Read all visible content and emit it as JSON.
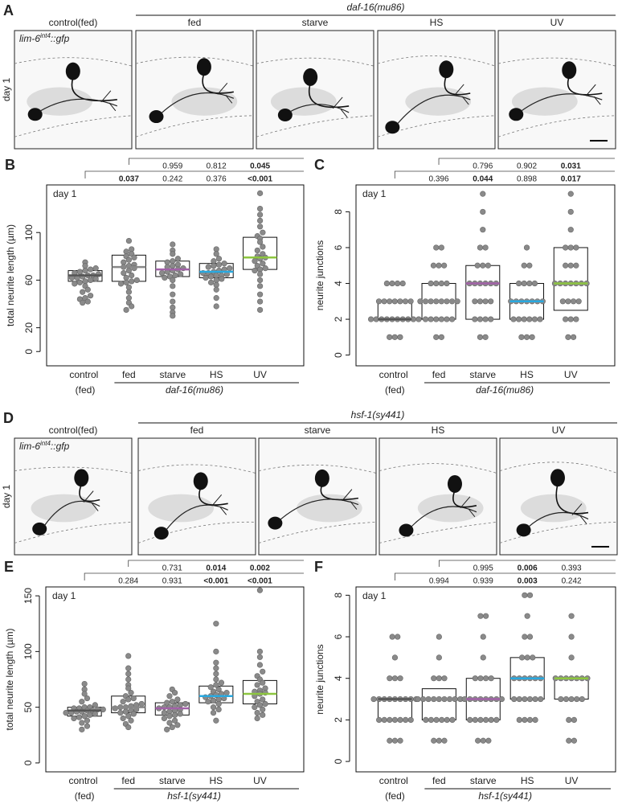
{
  "panel_A": {
    "letter": "A",
    "genotype": "daf-16(mu86)",
    "columns": [
      "control(fed)",
      "fed",
      "starve",
      "HS",
      "UV"
    ],
    "row_label": "day 1",
    "reporter": {
      "base": "lim-6",
      "sup": "int4",
      "suffix": "::gfp"
    }
  },
  "panel_D": {
    "letter": "D",
    "genotype": "hsf-1(sy441)",
    "columns": [
      "control(fed)",
      "fed",
      "starve",
      "HS",
      "UV"
    ],
    "row_label": "day 1",
    "reporter": {
      "base": "lim-6",
      "sup": "int4",
      "suffix": "::gfp"
    }
  },
  "chart_data": [
    {
      "type": "box-swarm",
      "panel": "B",
      "ylabel": "total neurite length (µm)",
      "inset_label": "day 1",
      "group_label": "daf-16(mu86)",
      "categories": [
        "control (fed)",
        "fed",
        "starve",
        "HS",
        "UV"
      ],
      "ylim": [
        -12,
        140
      ],
      "yticks": [
        0,
        20,
        60,
        100
      ],
      "point_color": "#8a8a8a",
      "p_vs_control": {
        "values": [
          "0.037",
          "0.242",
          "0.376",
          "<0.001"
        ],
        "bold": [
          true,
          false,
          false,
          true
        ]
      },
      "p_vs_fed": {
        "values": [
          "0.959",
          "0.812",
          "0.045"
        ],
        "bold": [
          false,
          false,
          true
        ]
      },
      "boxes": [
        {
          "q1": 59,
          "median": 64,
          "q3": 68,
          "color": "#555555"
        },
        {
          "q1": 59,
          "median": 71,
          "q3": 81,
          "color": "#888888"
        },
        {
          "q1": 63,
          "median": 69,
          "q3": 76,
          "color": "#a262a8"
        },
        {
          "q1": 62,
          "median": 67,
          "q3": 74,
          "color": "#29a9e0"
        },
        {
          "q1": 69,
          "median": 79,
          "q3": 96,
          "color": "#8dc63f"
        }
      ],
      "points": [
        [
          41,
          42,
          44,
          45,
          47,
          50,
          52,
          55,
          57,
          58,
          59,
          60,
          61,
          62,
          62,
          63,
          64,
          64,
          65,
          66,
          67,
          68,
          69,
          70,
          72,
          75
        ],
        [
          35,
          38,
          41,
          45,
          50,
          54,
          57,
          58,
          59,
          60,
          62,
          64,
          66,
          68,
          70,
          71,
          72,
          73,
          75,
          77,
          79,
          80,
          82,
          84,
          86,
          93
        ],
        [
          30,
          33,
          37,
          42,
          48,
          55,
          60,
          62,
          63,
          64,
          65,
          66,
          67,
          68,
          69,
          70,
          71,
          72,
          73,
          75,
          76,
          78,
          82,
          85,
          90
        ],
        [
          38,
          45,
          52,
          56,
          58,
          60,
          61,
          62,
          63,
          64,
          64,
          65,
          66,
          66,
          67,
          68,
          69,
          70,
          71,
          72,
          73,
          74,
          76,
          78,
          82,
          86
        ],
        [
          35,
          42,
          48,
          55,
          60,
          65,
          68,
          69,
          70,
          72,
          74,
          76,
          78,
          79,
          80,
          82,
          85,
          88,
          92,
          95,
          97,
          100,
          105,
          110,
          115,
          120,
          133
        ]
      ]
    },
    {
      "type": "box-swarm",
      "panel": "C",
      "ylabel": "neurite junctions",
      "inset_label": "day 1",
      "group_label": "daf-16(mu86)",
      "categories": [
        "control (fed)",
        "fed",
        "starve",
        "HS",
        "UV"
      ],
      "ylim": [
        -0.6,
        9.5
      ],
      "yticks": [
        0,
        2,
        4,
        6,
        8
      ],
      "point_color": "#8a8a8a",
      "p_vs_control": {
        "values": [
          "0.396",
          "0.044",
          "0.898",
          "0.017"
        ],
        "bold": [
          false,
          true,
          false,
          true
        ]
      },
      "p_vs_fed": {
        "values": [
          "0.796",
          "0.902",
          "0.031"
        ],
        "bold": [
          false,
          false,
          true
        ]
      },
      "boxes": [
        {
          "q1": 2,
          "median": 2,
          "q3": 3,
          "color": "#555555"
        },
        {
          "q1": 2,
          "median": 3,
          "q3": 4,
          "color": "#888888"
        },
        {
          "q1": 2,
          "median": 4,
          "q3": 5,
          "color": "#a262a8"
        },
        {
          "q1": 2,
          "median": 3,
          "q3": 4,
          "color": "#29a9e0"
        },
        {
          "q1": 2.5,
          "median": 4,
          "q3": 6,
          "color": "#8dc63f"
        }
      ],
      "points": [
        [
          1,
          1,
          1,
          2,
          2,
          2,
          2,
          2,
          2,
          2,
          2,
          2,
          2,
          3,
          3,
          3,
          3,
          3,
          3,
          3,
          4,
          4,
          4,
          4
        ],
        [
          1,
          1,
          2,
          2,
          2,
          2,
          2,
          2,
          3,
          3,
          3,
          3,
          3,
          3,
          3,
          3,
          4,
          4,
          4,
          4,
          5,
          5,
          5,
          6,
          6
        ],
        [
          1,
          1,
          2,
          2,
          2,
          2,
          3,
          3,
          3,
          3,
          4,
          4,
          4,
          4,
          4,
          4,
          5,
          5,
          5,
          6,
          6,
          7,
          8,
          9
        ],
        [
          1,
          1,
          1,
          2,
          2,
          2,
          2,
          2,
          2,
          3,
          3,
          3,
          3,
          3,
          3,
          3,
          4,
          4,
          4,
          4,
          5,
          5,
          6
        ],
        [
          1,
          1,
          2,
          2,
          2,
          3,
          3,
          3,
          3,
          4,
          4,
          4,
          4,
          4,
          4,
          4,
          5,
          5,
          5,
          6,
          6,
          6,
          7,
          8,
          9
        ]
      ]
    },
    {
      "type": "box-swarm",
      "panel": "E",
      "ylabel": "total neurite length (µm)",
      "inset_label": "day 1",
      "group_label": "hsf-1(sy441)",
      "categories": [
        "control (fed)",
        "fed",
        "starve",
        "HS",
        "UV"
      ],
      "ylim": [
        -8,
        158
      ],
      "yticks": [
        0,
        50,
        100,
        150
      ],
      "point_color": "#8a8a8a",
      "p_vs_control": {
        "values": [
          "0.284",
          "0.931",
          "<0.001",
          "<0.001"
        ],
        "bold": [
          false,
          false,
          true,
          true
        ]
      },
      "p_vs_fed": {
        "values": [
          "0.731",
          "0.014",
          "0.002"
        ],
        "bold": [
          false,
          true,
          true
        ]
      },
      "boxes": [
        {
          "q1": 42,
          "median": 47,
          "q3": 50,
          "color": "#555555"
        },
        {
          "q1": 45,
          "median": 50,
          "q3": 60,
          "color": "#888888"
        },
        {
          "q1": 43,
          "median": 49,
          "q3": 54,
          "color": "#a262a8"
        },
        {
          "q1": 54,
          "median": 60,
          "q3": 69,
          "color": "#29a9e0"
        },
        {
          "q1": 53,
          "median": 62,
          "q3": 74,
          "color": "#8dc63f"
        }
      ],
      "points": [
        [
          30,
          33,
          36,
          38,
          40,
          41,
          42,
          43,
          44,
          45,
          45,
          46,
          46,
          47,
          47,
          48,
          48,
          49,
          49,
          50,
          50,
          52,
          55,
          58,
          62,
          66,
          71
        ],
        [
          32,
          35,
          38,
          40,
          42,
          44,
          45,
          46,
          47,
          48,
          49,
          50,
          50,
          51,
          52,
          53,
          55,
          57,
          58,
          60,
          63,
          67,
          70,
          75,
          80,
          85,
          96
        ],
        [
          30,
          32,
          34,
          36,
          38,
          40,
          42,
          43,
          44,
          45,
          46,
          47,
          48,
          49,
          50,
          50,
          51,
          52,
          53,
          54,
          55,
          57,
          60,
          63,
          66
        ],
        [
          38,
          45,
          48,
          50,
          53,
          55,
          56,
          57,
          58,
          59,
          60,
          61,
          62,
          63,
          64,
          66,
          68,
          70,
          72,
          75,
          80,
          85,
          90,
          100,
          125
        ],
        [
          40,
          43,
          45,
          48,
          50,
          52,
          53,
          55,
          57,
          60,
          62,
          63,
          64,
          65,
          67,
          70,
          72,
          75,
          78,
          82,
          88,
          95,
          100,
          155
        ]
      ]
    },
    {
      "type": "box-swarm",
      "panel": "F",
      "ylabel": "neurite junctions",
      "inset_label": "day 1",
      "group_label": "hsf-1(sy441)",
      "categories": [
        "control (fed)",
        "fed",
        "starve",
        "HS",
        "UV"
      ],
      "ylim": [
        -0.5,
        8.4
      ],
      "yticks": [
        0,
        2,
        4,
        6,
        8
      ],
      "point_color": "#8a8a8a",
      "p_vs_control": {
        "values": [
          "0.994",
          "0.939",
          "0.003",
          "0.242"
        ],
        "bold": [
          false,
          false,
          true,
          false
        ]
      },
      "p_vs_fed": {
        "values": [
          "0.995",
          "0.006",
          "0.393"
        ],
        "bold": [
          false,
          true,
          false
        ]
      },
      "boxes": [
        {
          "q1": 2,
          "median": 3,
          "q3": 3,
          "color": "#555555"
        },
        {
          "q1": 2,
          "median": 3,
          "q3": 3.5,
          "color": "#888888"
        },
        {
          "q1": 2,
          "median": 3,
          "q3": 4,
          "color": "#a262a8"
        },
        {
          "q1": 3,
          "median": 4,
          "q3": 5,
          "color": "#29a9e0"
        },
        {
          "q1": 3,
          "median": 4,
          "q3": 4,
          "color": "#8dc63f"
        }
      ],
      "points": [
        [
          1,
          1,
          1,
          2,
          2,
          2,
          2,
          2,
          2,
          2,
          3,
          3,
          3,
          3,
          3,
          3,
          3,
          3,
          3,
          4,
          4,
          4,
          5,
          6,
          6
        ],
        [
          1,
          1,
          1,
          2,
          2,
          2,
          2,
          2,
          2,
          3,
          3,
          3,
          3,
          3,
          3,
          3,
          3,
          3,
          4,
          4,
          4,
          5,
          6
        ],
        [
          1,
          1,
          1,
          2,
          2,
          2,
          2,
          2,
          2,
          3,
          3,
          3,
          3,
          3,
          3,
          3,
          3,
          4,
          4,
          4,
          4,
          5,
          6,
          7,
          7
        ],
        [
          2,
          2,
          2,
          2,
          3,
          3,
          3,
          3,
          3,
          3,
          4,
          4,
          4,
          4,
          4,
          4,
          5,
          5,
          5,
          6,
          6,
          7,
          8,
          8
        ],
        [
          1,
          1,
          2,
          2,
          3,
          3,
          3,
          3,
          3,
          4,
          4,
          4,
          4,
          4,
          4,
          4,
          5,
          6,
          7
        ]
      ]
    }
  ]
}
